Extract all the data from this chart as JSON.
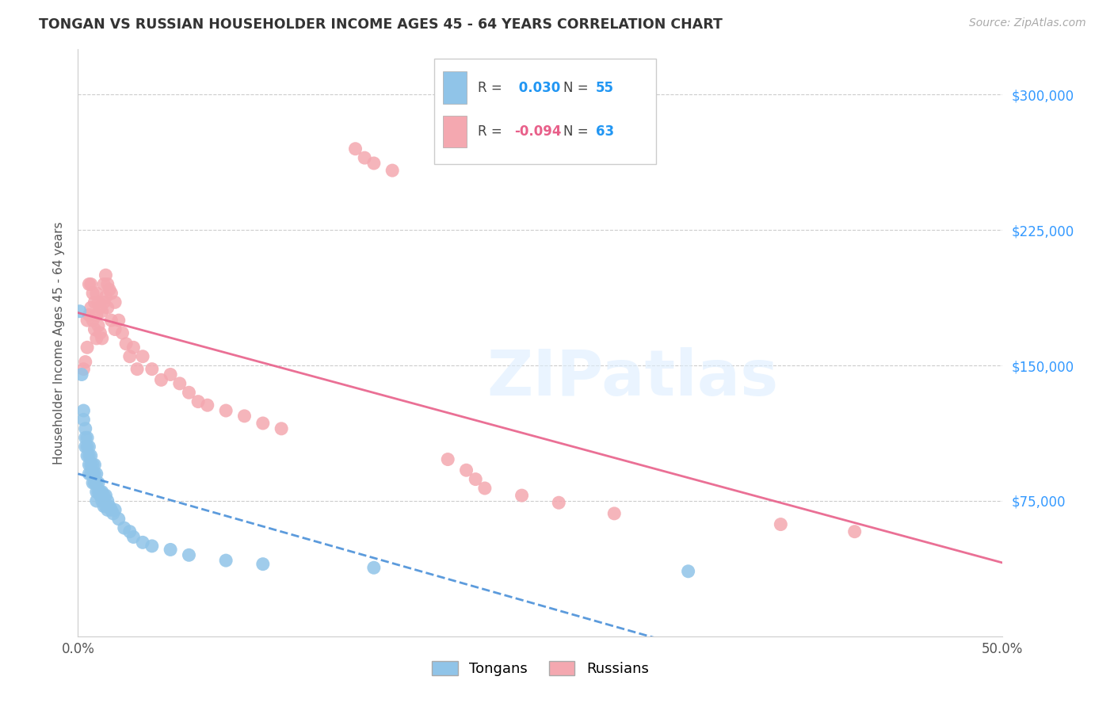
{
  "title": "TONGAN VS RUSSIAN HOUSEHOLDER INCOME AGES 45 - 64 YEARS CORRELATION CHART",
  "source": "Source: ZipAtlas.com",
  "ylabel": "Householder Income Ages 45 - 64 years",
  "xlim": [
    0.0,
    0.5
  ],
  "ylim": [
    0,
    325000
  ],
  "yticks": [
    0,
    75000,
    150000,
    225000,
    300000
  ],
  "xticks": [
    0.0,
    0.1,
    0.2,
    0.3,
    0.4,
    0.5
  ],
  "xtick_labels": [
    "0.0%",
    "",
    "",
    "",
    "",
    "50.0%"
  ],
  "ytick_labels": [
    "",
    "$75,000",
    "$150,000",
    "$225,000",
    "$300,000"
  ],
  "background_color": "#ffffff",
  "tongan_R": 0.03,
  "tongan_N": 55,
  "russian_R": -0.094,
  "russian_N": 63,
  "tongan_color": "#90c4e8",
  "russian_color": "#f4a8b0",
  "tongan_line_color": "#4a90d9",
  "russian_line_color": "#e8608a",
  "tongan_x": [
    0.001,
    0.002,
    0.003,
    0.003,
    0.004,
    0.004,
    0.004,
    0.005,
    0.005,
    0.005,
    0.006,
    0.006,
    0.006,
    0.006,
    0.007,
    0.007,
    0.007,
    0.008,
    0.008,
    0.008,
    0.009,
    0.009,
    0.009,
    0.01,
    0.01,
    0.01,
    0.01,
    0.011,
    0.011,
    0.012,
    0.012,
    0.013,
    0.013,
    0.014,
    0.014,
    0.015,
    0.015,
    0.016,
    0.016,
    0.017,
    0.018,
    0.019,
    0.02,
    0.022,
    0.025,
    0.028,
    0.03,
    0.035,
    0.04,
    0.05,
    0.06,
    0.08,
    0.1,
    0.16,
    0.33
  ],
  "tongan_y": [
    180000,
    145000,
    125000,
    120000,
    115000,
    110000,
    105000,
    110000,
    105000,
    100000,
    105000,
    100000,
    95000,
    90000,
    100000,
    95000,
    90000,
    95000,
    90000,
    85000,
    95000,
    90000,
    85000,
    90000,
    85000,
    80000,
    75000,
    85000,
    80000,
    80000,
    78000,
    80000,
    75000,
    78000,
    72000,
    78000,
    72000,
    75000,
    70000,
    72000,
    70000,
    68000,
    70000,
    65000,
    60000,
    58000,
    55000,
    52000,
    50000,
    48000,
    45000,
    42000,
    40000,
    38000,
    36000
  ],
  "russian_x": [
    0.003,
    0.004,
    0.005,
    0.005,
    0.006,
    0.006,
    0.007,
    0.007,
    0.008,
    0.008,
    0.009,
    0.009,
    0.01,
    0.01,
    0.01,
    0.011,
    0.011,
    0.012,
    0.012,
    0.013,
    0.013,
    0.014,
    0.014,
    0.015,
    0.015,
    0.016,
    0.016,
    0.017,
    0.018,
    0.018,
    0.02,
    0.02,
    0.022,
    0.024,
    0.026,
    0.028,
    0.03,
    0.032,
    0.035,
    0.04,
    0.045,
    0.05,
    0.055,
    0.06,
    0.065,
    0.07,
    0.08,
    0.09,
    0.1,
    0.11,
    0.15,
    0.155,
    0.16,
    0.17,
    0.2,
    0.21,
    0.215,
    0.22,
    0.24,
    0.26,
    0.29,
    0.38,
    0.42
  ],
  "russian_y": [
    148000,
    152000,
    175000,
    160000,
    195000,
    178000,
    195000,
    182000,
    190000,
    175000,
    185000,
    170000,
    190000,
    178000,
    165000,
    185000,
    172000,
    182000,
    168000,
    180000,
    165000,
    195000,
    185000,
    200000,
    188000,
    195000,
    182000,
    192000,
    190000,
    175000,
    185000,
    170000,
    175000,
    168000,
    162000,
    155000,
    160000,
    148000,
    155000,
    148000,
    142000,
    145000,
    140000,
    135000,
    130000,
    128000,
    125000,
    122000,
    118000,
    115000,
    270000,
    265000,
    262000,
    258000,
    98000,
    92000,
    87000,
    82000,
    78000,
    74000,
    68000,
    62000,
    58000
  ]
}
